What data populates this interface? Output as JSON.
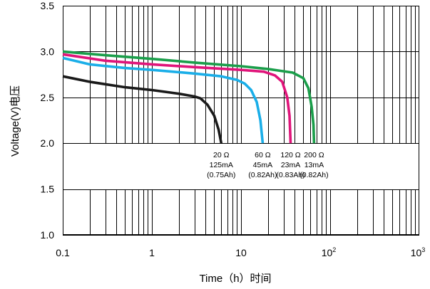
{
  "chart_data": {
    "type": "line",
    "x_scale": "log",
    "xlim": [
      0.1,
      1000
    ],
    "ylim": [
      1.0,
      3.5
    ],
    "xlabel": "Time（h）时间",
    "ylabel": "Voltage(V)电压",
    "x_ticks": [
      {
        "value": 0.1,
        "base": "0.1",
        "exp": ""
      },
      {
        "value": 1,
        "base": "1",
        "exp": ""
      },
      {
        "value": 10,
        "base": "10",
        "exp": ""
      },
      {
        "value": 100,
        "base": "10",
        "exp": "2"
      },
      {
        "value": 1000,
        "base": "10",
        "exp": "3"
      }
    ],
    "y_ticks": [
      1.0,
      1.5,
      2.0,
      2.5,
      3.0,
      3.5
    ],
    "y_tick_labels": [
      "1.0",
      "1.5",
      "2.0",
      "2.5",
      "3.0",
      "3.5"
    ],
    "grid": true,
    "series": [
      {
        "color": "#1a1a1a",
        "annotation": [
          "20 Ω",
          "125mA",
          "(0.75Ah)"
        ],
        "points": [
          [
            0.1,
            2.73
          ],
          [
            0.2,
            2.67
          ],
          [
            0.5,
            2.61
          ],
          [
            1,
            2.58
          ],
          [
            2,
            2.54
          ],
          [
            3,
            2.51
          ],
          [
            3.5,
            2.49
          ],
          [
            4.2,
            2.42
          ],
          [
            5,
            2.3
          ],
          [
            5.6,
            2.15
          ],
          [
            6,
            2.0
          ]
        ]
      },
      {
        "color": "#1aaee8",
        "annotation": [
          "60 Ω",
          "45mA",
          "(0.82Ah)"
        ],
        "points": [
          [
            0.1,
            2.93
          ],
          [
            0.2,
            2.86
          ],
          [
            0.5,
            2.82
          ],
          [
            1,
            2.8
          ],
          [
            3,
            2.76
          ],
          [
            6,
            2.73
          ],
          [
            9,
            2.69
          ],
          [
            11,
            2.65
          ],
          [
            13,
            2.58
          ],
          [
            15,
            2.45
          ],
          [
            16.5,
            2.25
          ],
          [
            17.5,
            2.0
          ]
        ]
      },
      {
        "color": "#e0147a",
        "annotation": [
          "120 Ω",
          "23mA",
          "(0.83Ah)"
        ],
        "points": [
          [
            0.1,
            2.97
          ],
          [
            0.3,
            2.9
          ],
          [
            1,
            2.86
          ],
          [
            3,
            2.83
          ],
          [
            10,
            2.8
          ],
          [
            18,
            2.78
          ],
          [
            24,
            2.74
          ],
          [
            29,
            2.67
          ],
          [
            33,
            2.5
          ],
          [
            35,
            2.3
          ],
          [
            36,
            2.0
          ]
        ]
      },
      {
        "color": "#1a9e4a",
        "annotation": [
          "200 Ω",
          "13mA",
          "(0.82Ah)"
        ],
        "points": [
          [
            0.1,
            3.0
          ],
          [
            0.3,
            2.96
          ],
          [
            1,
            2.92
          ],
          [
            3,
            2.88
          ],
          [
            10,
            2.84
          ],
          [
            20,
            2.81
          ],
          [
            38,
            2.77
          ],
          [
            50,
            2.71
          ],
          [
            57,
            2.6
          ],
          [
            62,
            2.4
          ],
          [
            65,
            2.2
          ],
          [
            66,
            2.0
          ]
        ]
      }
    ]
  }
}
